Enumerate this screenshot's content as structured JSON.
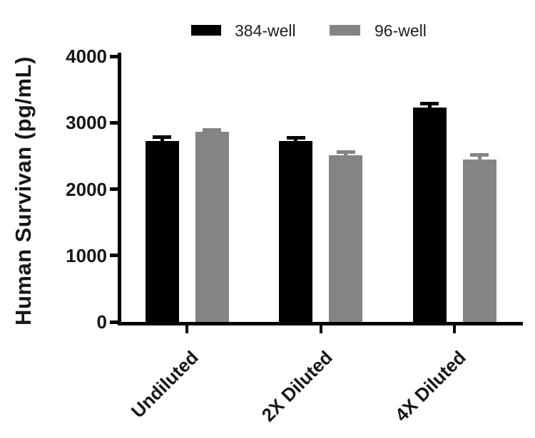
{
  "page": {
    "background": "#ffffff"
  },
  "chart_data": {
    "type": "bar",
    "title": "",
    "ylabel": "Human Survivan (pg/mL)",
    "xlabel": "",
    "ylim": [
      0,
      4000
    ],
    "yticks": [
      0,
      1000,
      2000,
      3000,
      4000
    ],
    "categories": [
      "Undiluted",
      "2X Diluted",
      "4X Diluted"
    ],
    "legend_position": "top",
    "grid": false,
    "axis_color": "#000000",
    "text_color": "#161616",
    "error_bars": "sd, upper only, capped",
    "series": [
      {
        "name": "384-well",
        "color": "#000000",
        "values": [
          2720,
          2720,
          3230
        ],
        "errors": [
          60,
          50,
          55
        ]
      },
      {
        "name": "96-well",
        "color": "#848484",
        "values": [
          2860,
          2510,
          2450
        ],
        "errors": [
          35,
          45,
          70
        ]
      }
    ]
  }
}
